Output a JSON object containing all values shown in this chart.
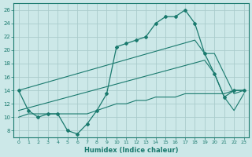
{
  "title": "",
  "xlabel": "Humidex (Indice chaleur)",
  "bg_color": "#cce8e8",
  "line_color": "#1a7a6e",
  "grid_color": "#aacccc",
  "xlim": [
    -0.5,
    23.5
  ],
  "ylim": [
    7,
    27
  ],
  "yticks": [
    8,
    10,
    12,
    14,
    16,
    18,
    20,
    22,
    24,
    26
  ],
  "xticks": [
    0,
    1,
    2,
    3,
    4,
    5,
    6,
    7,
    8,
    9,
    10,
    11,
    12,
    13,
    14,
    15,
    16,
    17,
    18,
    19,
    20,
    21,
    22,
    23
  ],
  "line1_x": [
    0,
    1,
    2,
    3,
    4,
    5,
    6,
    7,
    8,
    9,
    10,
    11,
    12,
    13,
    14,
    15,
    16,
    17,
    18,
    19,
    20,
    21,
    22,
    23
  ],
  "line1_y": [
    14,
    11,
    10,
    10.5,
    10.5,
    8,
    7.5,
    9,
    11,
    13.5,
    20.5,
    21,
    21.5,
    22,
    24,
    25,
    25,
    26,
    24,
    19.5,
    16.5,
    13,
    14,
    14
  ],
  "line2_x": [
    0,
    18,
    19,
    20,
    21,
    22,
    23
  ],
  "line2_y": [
    14,
    21.5,
    19.5,
    19.5,
    16.5,
    13.5,
    14
  ],
  "line3_x": [
    0,
    19,
    20,
    21,
    22,
    23
  ],
  "line3_y": [
    11,
    18.5,
    16.5,
    13,
    11,
    13.5
  ],
  "line4_x": [
    0,
    1,
    2,
    3,
    4,
    5,
    6,
    7,
    8,
    9,
    10,
    11,
    12,
    13,
    14,
    15,
    16,
    17,
    18,
    19,
    20,
    21,
    22,
    23
  ],
  "line4_y": [
    10,
    10.5,
    10.5,
    10.5,
    10.5,
    10.5,
    10.5,
    10.5,
    11,
    11.5,
    12,
    12,
    12.5,
    12.5,
    13,
    13,
    13,
    13.5,
    13.5,
    13.5,
    13.5,
    13.5,
    14,
    14
  ]
}
